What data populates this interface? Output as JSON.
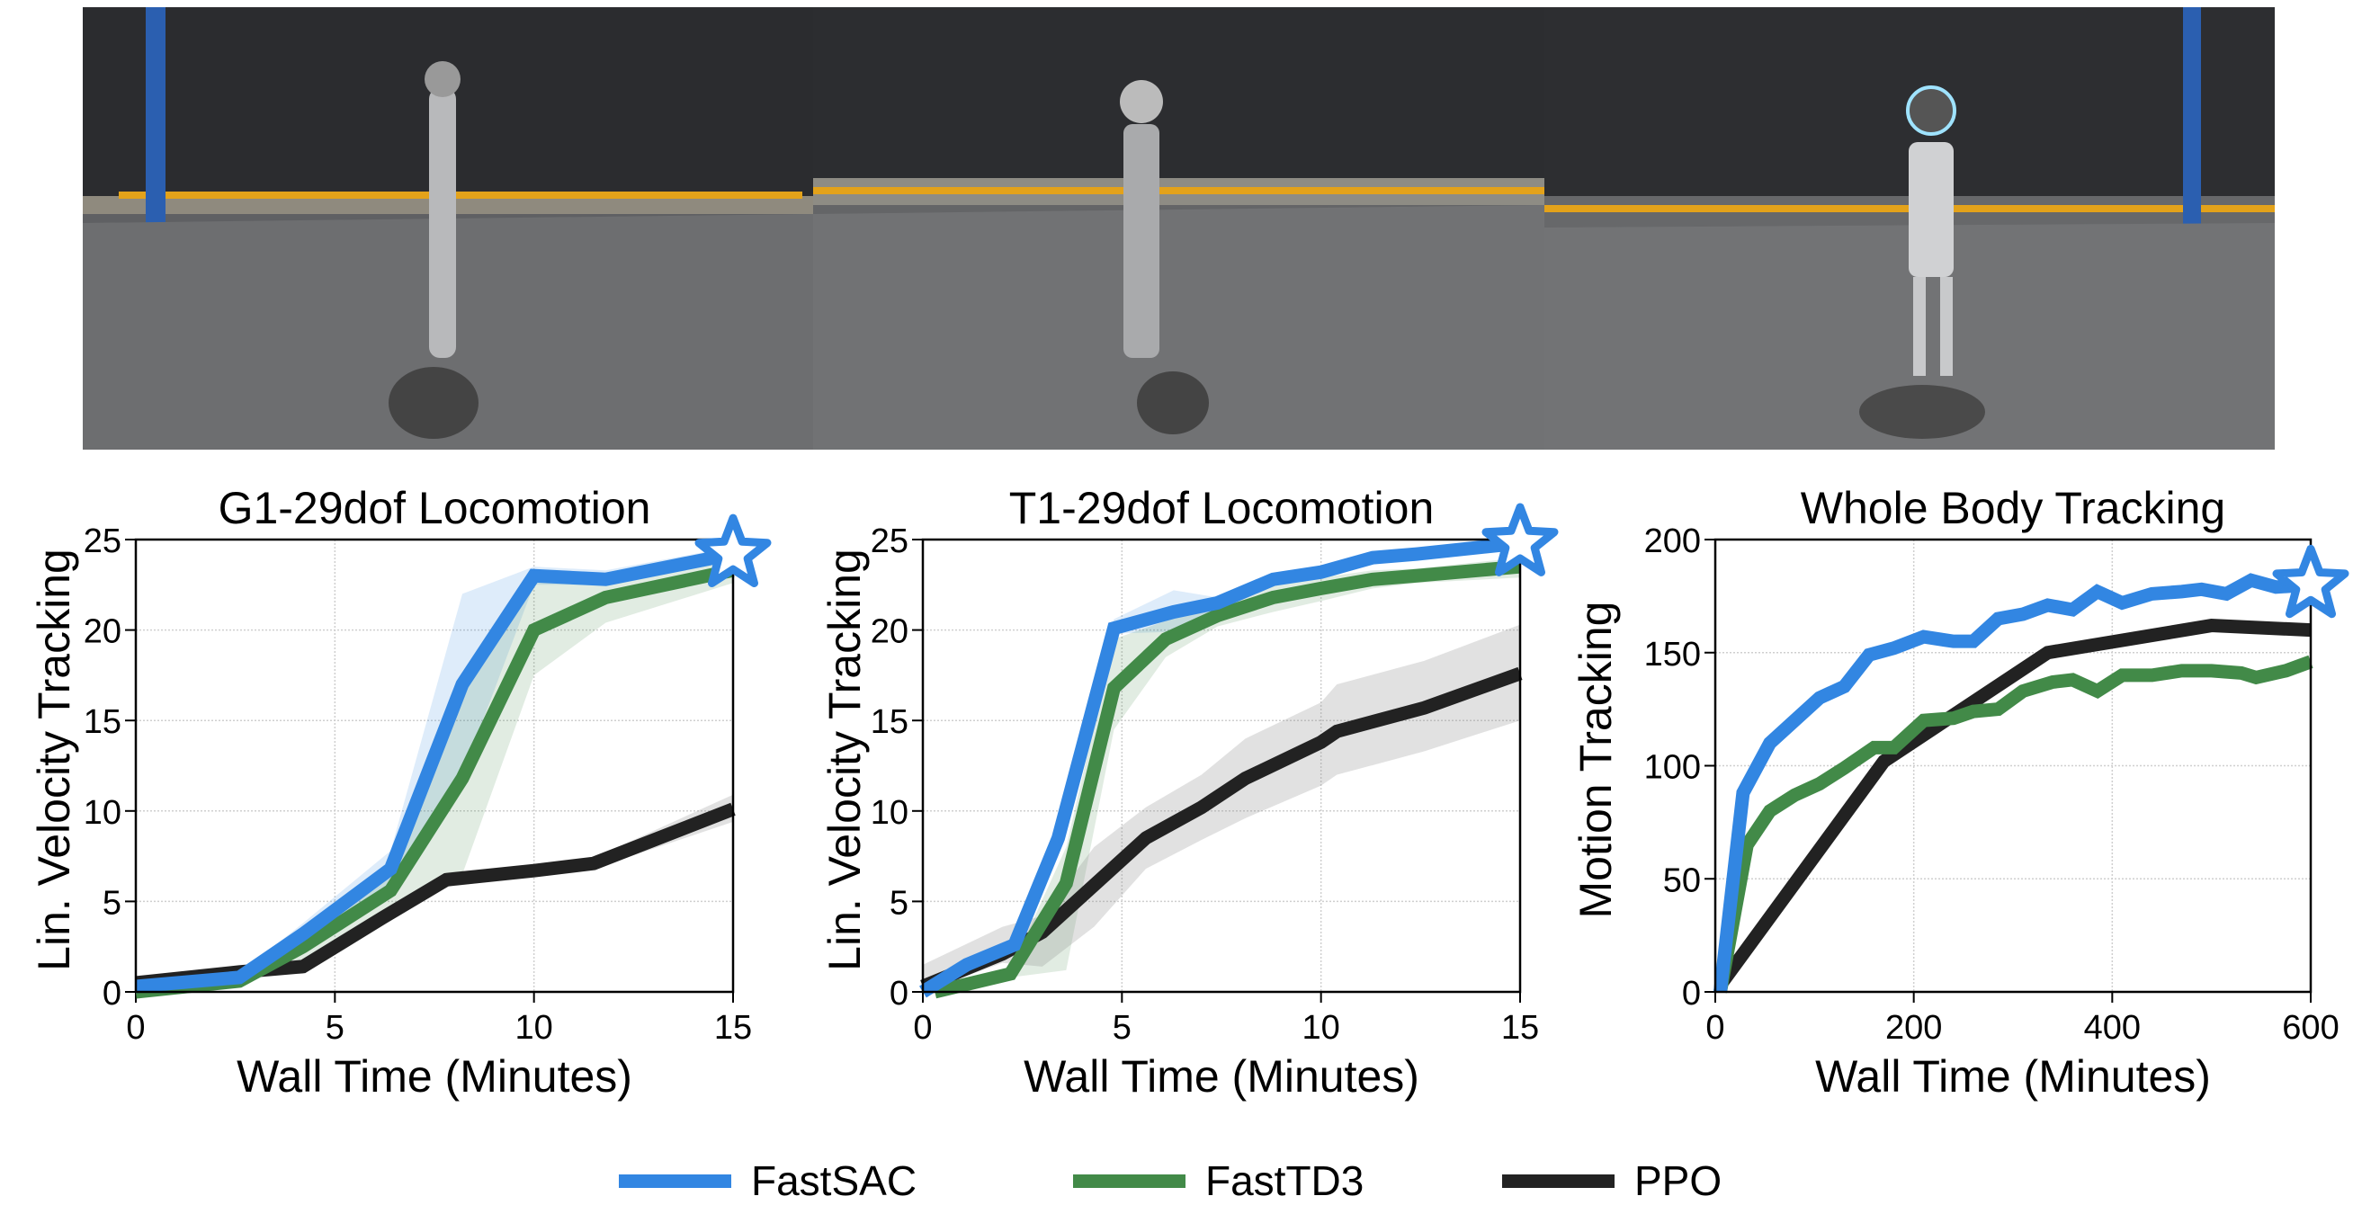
{
  "colors": {
    "FastSAC": "#3286e2",
    "FastTD3": "#428a48",
    "PPO": "#222222"
  },
  "photos": [
    {
      "name": "photo-g1-robot-walking"
    },
    {
      "name": "photo-t1-robot-walking"
    },
    {
      "name": "photo-robot-whole-body-tracking"
    }
  ],
  "legend": {
    "placement": "bottom",
    "items": [
      "FastSAC",
      "FastTD3",
      "PPO"
    ]
  },
  "chart_data": [
    {
      "type": "line",
      "title": "G1-29dof Locomotion",
      "xlabel": "Wall Time (Minutes)",
      "ylabel": "Lin. Velocity Tracking",
      "xlim": [
        0,
        15
      ],
      "ylim": [
        0,
        25
      ],
      "xticks": [
        0,
        5,
        10,
        15
      ],
      "yticks": [
        0,
        5,
        10,
        15,
        20,
        25
      ],
      "grid": true,
      "best_marker": {
        "series": "FastSAC",
        "marker": "star"
      },
      "series": [
        {
          "name": "FastSAC",
          "x": [
            0,
            2.6,
            4.2,
            6.4,
            8.2,
            10,
            11.8,
            15
          ],
          "y": [
            0.3,
            0.8,
            3.2,
            6.8,
            17,
            23,
            22.8,
            24.2
          ],
          "lower": [
            0.2,
            0.6,
            2.6,
            5.8,
            12,
            22.5,
            22.5,
            23.8
          ],
          "upper": [
            0.4,
            1.0,
            3.8,
            7.8,
            22,
            23.5,
            23.3,
            24.6
          ]
        },
        {
          "name": "FastTD3",
          "x": [
            0,
            2.6,
            4.2,
            6.4,
            8.2,
            10,
            11.8,
            15
          ],
          "y": [
            0,
            0.6,
            2.5,
            5.6,
            11.8,
            20,
            21.8,
            23.3
          ],
          "lower": [
            0,
            0.4,
            1.8,
            4.6,
            6.5,
            17.5,
            20.4,
            22.6
          ],
          "upper": [
            0.1,
            0.8,
            3.2,
            6.6,
            17,
            22.6,
            22.8,
            23.8
          ]
        },
        {
          "name": "PPO",
          "x": [
            0,
            2.6,
            4.2,
            6.2,
            7.8,
            10,
            11.5,
            15
          ],
          "y": [
            0.5,
            1.1,
            1.4,
            4.1,
            6.2,
            6.7,
            7.1,
            10.1
          ],
          "lower": [
            0.4,
            0.9,
            1.0,
            3.7,
            5.8,
            6.4,
            6.8,
            9.4
          ],
          "upper": [
            0.6,
            1.3,
            1.8,
            4.5,
            6.6,
            7.0,
            7.4,
            10.9
          ]
        }
      ]
    },
    {
      "type": "line",
      "title": "T1-29dof Locomotion",
      "xlabel": "Wall Time (Minutes)",
      "ylabel": "Lin. Velocity Tracking",
      "xlim": [
        0,
        15
      ],
      "ylim": [
        0,
        25
      ],
      "xticks": [
        0,
        5,
        10,
        15
      ],
      "yticks": [
        0,
        5,
        10,
        15,
        20,
        25
      ],
      "grid": true,
      "best_marker": {
        "series": "FastSAC",
        "marker": "star"
      },
      "series": [
        {
          "name": "FastSAC",
          "x": [
            0,
            1.1,
            2.3,
            3.4,
            4.8,
            6.3,
            7.4,
            8.8,
            10,
            11.3,
            12.4,
            15
          ],
          "y": [
            0,
            1.5,
            2.6,
            8.5,
            20.1,
            21,
            21.5,
            22.8,
            23.2,
            24,
            24.2,
            24.8
          ],
          "lower": [
            0,
            1.3,
            2.3,
            7.5,
            19.8,
            19.9,
            21.2,
            22.6,
            23.0,
            23.8,
            24.0,
            24.6
          ],
          "upper": [
            0,
            1.7,
            2.9,
            9.5,
            20.6,
            22.2,
            21.8,
            23.0,
            23.4,
            24.2,
            24.4,
            25
          ]
        },
        {
          "name": "FastTD3",
          "x": [
            0.3,
            2.2,
            3.6,
            4.8,
            6.1,
            7.4,
            8.8,
            10,
            11.3,
            12.4,
            15
          ],
          "y": [
            0,
            1,
            6,
            16.8,
            19.5,
            20.8,
            21.8,
            22.3,
            22.8,
            23,
            23.5
          ],
          "lower": [
            0,
            0.8,
            1.2,
            14.5,
            18.5,
            20.2,
            21.0,
            21.6,
            22.3,
            22.6,
            22.9
          ],
          "upper": [
            0.1,
            1.2,
            8,
            19.5,
            20.5,
            21.4,
            22.5,
            22.9,
            23.3,
            23.4,
            24
          ]
        },
        {
          "name": "PPO",
          "x": [
            0,
            2,
            3,
            4.3,
            5.6,
            7,
            8.1,
            10,
            10.4,
            12.6,
            15
          ],
          "y": [
            0.3,
            2.1,
            3.3,
            5.9,
            8.5,
            10.2,
            11.8,
            13.8,
            14.4,
            15.7,
            17.6
          ],
          "lower": [
            0,
            1.6,
            1.4,
            3.6,
            6.8,
            8.4,
            9.6,
            11.4,
            12.0,
            13.3,
            15.0
          ],
          "upper": [
            1.5,
            3.6,
            4.2,
            8.0,
            10.2,
            12.0,
            14.0,
            16.0,
            17.0,
            18.3,
            20.3
          ]
        }
      ]
    },
    {
      "type": "line",
      "title": "Whole Body Tracking",
      "xlabel": "Wall Time (Minutes)",
      "ylabel": "Motion Tracking",
      "xlim": [
        0,
        600
      ],
      "ylim": [
        0,
        200
      ],
      "xticks": [
        0,
        200,
        400,
        600
      ],
      "yticks": [
        0,
        50,
        100,
        150,
        200
      ],
      "grid": true,
      "best_marker": {
        "series": "FastSAC",
        "marker": "star"
      },
      "series": [
        {
          "name": "FastSAC",
          "x": [
            5,
            28,
            55,
            80,
            105,
            130,
            155,
            180,
            210,
            240,
            260,
            285,
            310,
            335,
            360,
            385,
            410,
            440,
            470,
            490,
            515,
            540,
            565,
            600
          ],
          "y": [
            0,
            88,
            110,
            120,
            130,
            135,
            149,
            152,
            157,
            155,
            155,
            165,
            167,
            171,
            169,
            177,
            172,
            176,
            177,
            178,
            176,
            182,
            179,
            180
          ]
        },
        {
          "name": "FastTD3",
          "x": [
            5,
            32,
            55,
            80,
            105,
            130,
            160,
            180,
            210,
            240,
            260,
            285,
            310,
            340,
            360,
            385,
            410,
            440,
            470,
            500,
            530,
            545,
            575,
            600
          ],
          "y": [
            0,
            65,
            80,
            87,
            92,
            99,
            108,
            108,
            120,
            121,
            124,
            125,
            133,
            137,
            138,
            133,
            140,
            140,
            142,
            142,
            141,
            139,
            142,
            146
          ]
        },
        {
          "name": "PPO",
          "x": [
            5,
            170,
            335,
            500,
            600
          ],
          "y": [
            3,
            102,
            150,
            162,
            160
          ]
        }
      ]
    }
  ]
}
